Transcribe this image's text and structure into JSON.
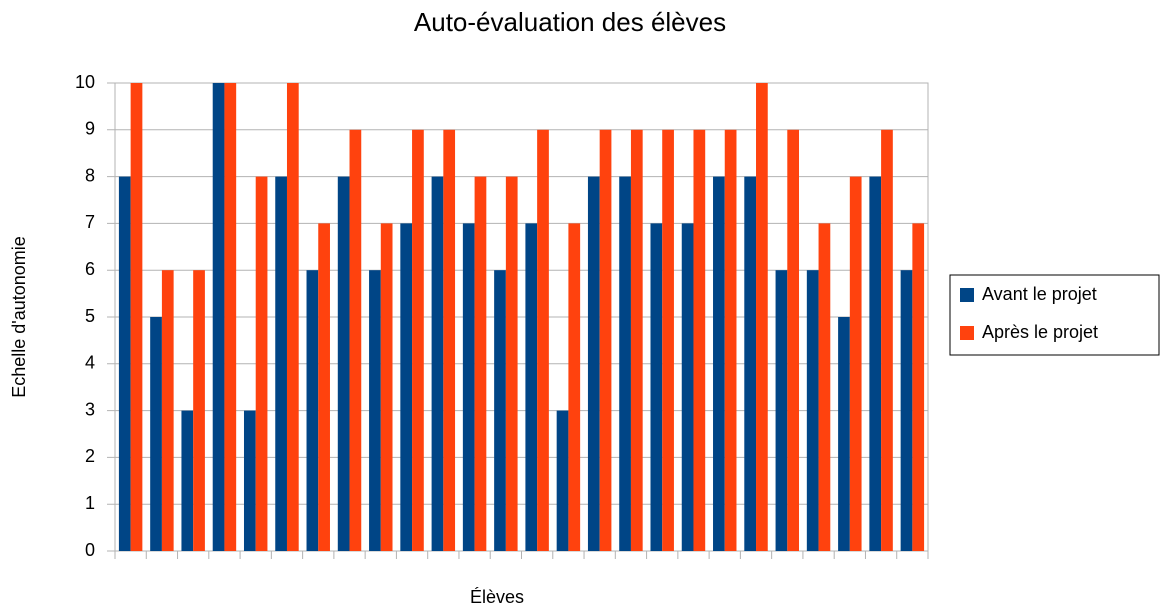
{
  "chart_data": {
    "type": "bar",
    "title": "Auto-évaluation des élèves",
    "x_label": "Élèves",
    "y_label": "Echelle d'autonomie",
    "categories": [
      null,
      null,
      null,
      null,
      null,
      null,
      null,
      null,
      null,
      null,
      null,
      null,
      null,
      null,
      null,
      null,
      null,
      null,
      null,
      null,
      null,
      null,
      null,
      null,
      null,
      null
    ],
    "series": [
      {
        "name": "Avant le projet",
        "color": "#004586",
        "values": [
          8,
          5,
          3,
          10,
          3,
          8,
          6,
          8,
          6,
          7,
          8,
          7,
          6,
          7,
          3,
          8,
          8,
          7,
          7,
          8,
          8,
          6,
          6,
          5,
          8,
          6
        ]
      },
      {
        "name": "Après le projet",
        "color": "#ff420e",
        "values": [
          10,
          6,
          6,
          10,
          8,
          10,
          7,
          9,
          7,
          9,
          9,
          8,
          8,
          9,
          7,
          9,
          9,
          9,
          9,
          9,
          10,
          9,
          7,
          8,
          9,
          7
        ]
      }
    ],
    "ylim": [
      0,
      10
    ],
    "yticks": [
      0,
      1,
      2,
      3,
      4,
      5,
      6,
      7,
      8,
      9,
      10
    ],
    "grid": true,
    "legend": "right"
  }
}
